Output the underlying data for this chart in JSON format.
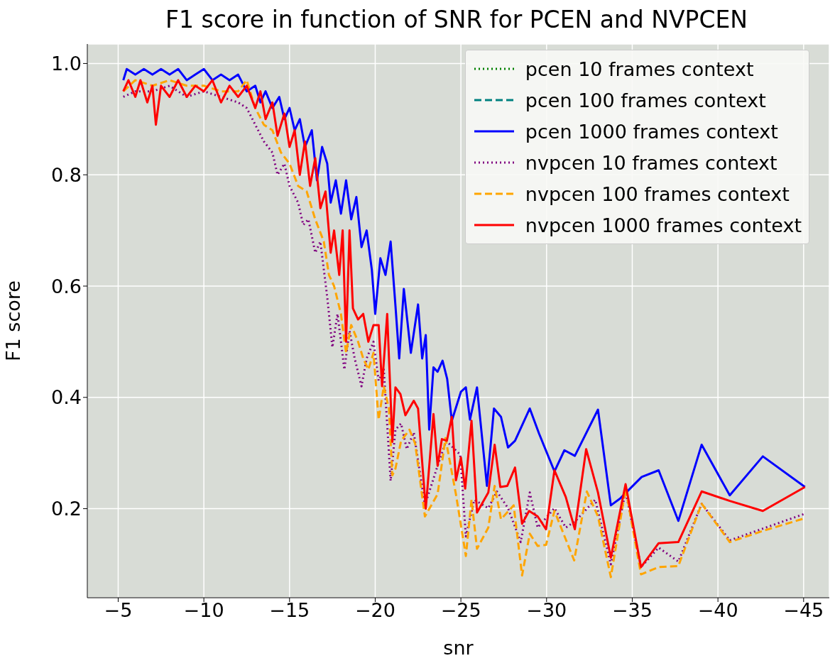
{
  "chart_data": {
    "type": "line",
    "title": "F1 score in function of SNR for PCEN and NVPCEN",
    "xlabel": "snr",
    "ylabel": "F1 score",
    "xlim": [
      -3.2,
      -46.5
    ],
    "ylim": [
      0.04,
      1.035
    ],
    "xticks": [
      {
        "value": -5,
        "label": "−5"
      },
      {
        "value": -10,
        "label": "−10"
      },
      {
        "value": -15,
        "label": "−15"
      },
      {
        "value": -20,
        "label": "−20"
      },
      {
        "value": -25,
        "label": "−25"
      },
      {
        "value": -30,
        "label": "−30"
      },
      {
        "value": -35,
        "label": "−35"
      },
      {
        "value": -40,
        "label": "−40"
      },
      {
        "value": -45,
        "label": "−45"
      }
    ],
    "yticks": [
      0.2,
      0.4,
      0.6,
      0.8,
      {
        "value": 1,
        "label": "1.0"
      }
    ],
    "grid": true,
    "legend": "top right",
    "marker": "none",
    "series": [
      {
        "name": "pcen 10 frames context",
        "color": "#008000",
        "line_style": "dotted"
      },
      {
        "name": "pcen 100 frames context",
        "color": "#008080",
        "line_style": "dashed"
      },
      {
        "name": "pcen 1000 frames context",
        "color": "#0000ff",
        "line_style": "solid",
        "x": [
          -5.3,
          -5.5,
          -6,
          -6.5,
          -7,
          -7.5,
          -8,
          -8.5,
          -9,
          -9.5,
          -10,
          -10.5,
          -11,
          -11.5,
          -12,
          -12.5,
          -13,
          -13.3,
          -13.6,
          -14,
          -14.4,
          -14.7,
          -15,
          -15.3,
          -15.6,
          -15.9,
          -16.3,
          -16.6,
          -16.9,
          -17.2,
          -17.4,
          -17.7,
          -18,
          -18.3,
          -18.6,
          -18.9,
          -19.2,
          -19.5,
          -19.8,
          -20,
          -20.3,
          -20.6,
          -20.9,
          -21.18,
          -21.4,
          -21.67,
          -22.08,
          -22.5,
          -22.74,
          -22.95,
          -23.15,
          -23.4,
          -23.64,
          -23.93,
          -24.2,
          -24.47,
          -25,
          -25.29,
          -25.53,
          -25.94,
          -26.52,
          -26.93,
          -27.34,
          -27.75,
          -28.16,
          -29.02,
          -29.56,
          -30.46,
          -31.04,
          -31.65,
          -33,
          -33.75,
          -34.32,
          -35.55,
          -36.54,
          -37.69,
          -39.05,
          -40.69,
          -42.62,
          -45.08
        ],
        "values": [
          0.97,
          0.99,
          0.98,
          0.99,
          0.98,
          0.99,
          0.98,
          0.99,
          0.97,
          0.98,
          0.99,
          0.97,
          0.98,
          0.97,
          0.98,
          0.95,
          0.96,
          0.93,
          0.95,
          0.92,
          0.94,
          0.9,
          0.92,
          0.88,
          0.9,
          0.85,
          0.88,
          0.79,
          0.85,
          0.82,
          0.75,
          0.79,
          0.73,
          0.79,
          0.72,
          0.76,
          0.67,
          0.7,
          0.63,
          0.55,
          0.65,
          0.62,
          0.68,
          0.565,
          0.47,
          0.595,
          0.48,
          0.567,
          0.47,
          0.512,
          0.342,
          0.454,
          0.446,
          0.466,
          0.433,
          0.358,
          0.41,
          0.418,
          0.36,
          0.418,
          0.241,
          0.38,
          0.365,
          0.31,
          0.322,
          0.38,
          0.335,
          0.267,
          0.305,
          0.295,
          0.378,
          0.206,
          0.219,
          0.257,
          0.269,
          0.178,
          0.315,
          0.224,
          0.294,
          0.239
        ]
      },
      {
        "name": "nvpcen 10 frames context",
        "color": "#800080",
        "line_style": "dotted",
        "x": [
          -5.3,
          -6,
          -7,
          -8,
          -9,
          -10,
          -11,
          -12,
          -12.5,
          -13,
          -13.5,
          -14,
          -14.3,
          -14.7,
          -15,
          -15.5,
          -15.8,
          -16.1,
          -16.5,
          -16.8,
          -17.2,
          -17.5,
          -17.8,
          -18.2,
          -18.5,
          -18.8,
          -19.2,
          -19.5,
          -19.9,
          -20.2,
          -20.5,
          -20.9,
          -21.18,
          -21.51,
          -21.84,
          -22.25,
          -22.9,
          -23.64,
          -24.14,
          -24.96,
          -25.29,
          -25.78,
          -26.6,
          -27.1,
          -27.75,
          -28.49,
          -29.02,
          -29.48,
          -30.46,
          -31.12,
          -31.69,
          -32.84,
          -33.75,
          -34.61,
          -35.51,
          -36.54,
          -37.69,
          -39.05,
          -40.69,
          -45.08
        ],
        "values": [
          0.94,
          0.95,
          0.95,
          0.96,
          0.94,
          0.95,
          0.94,
          0.93,
          0.92,
          0.89,
          0.86,
          0.84,
          0.8,
          0.82,
          0.78,
          0.75,
          0.71,
          0.72,
          0.66,
          0.68,
          0.58,
          0.49,
          0.55,
          0.45,
          0.52,
          0.47,
          0.42,
          0.47,
          0.5,
          0.43,
          0.45,
          0.25,
          0.342,
          0.353,
          0.307,
          0.337,
          0.206,
          0.277,
          0.322,
          0.297,
          0.15,
          0.216,
          0.201,
          0.231,
          0.201,
          0.14,
          0.229,
          0.166,
          0.201,
          0.166,
          0.178,
          0.216,
          0.1,
          0.231,
          0.095,
          0.13,
          0.105,
          0.209,
          0.143,
          0.191
        ]
      },
      {
        "name": "nvpcen 100 frames context",
        "color": "#ffa500",
        "line_style": "dashed",
        "x": [
          -5.3,
          -6,
          -7,
          -8,
          -9,
          -10,
          -11,
          -12,
          -12.5,
          -13,
          -13.5,
          -14,
          -14.5,
          -15,
          -15.5,
          -16,
          -16.5,
          -17,
          -17.3,
          -17.6,
          -18,
          -18.3,
          -18.6,
          -19,
          -19.3,
          -19.6,
          -19.9,
          -20.2,
          -20.5,
          -20.8,
          -21,
          -21.18,
          -21.51,
          -22,
          -22.33,
          -22.9,
          -23.64,
          -24.1,
          -24.71,
          -25.29,
          -25.62,
          -25.94,
          -26.6,
          -26.97,
          -27.34,
          -28.08,
          -28.57,
          -29.02,
          -29.48,
          -29.97,
          -30.46,
          -31.61,
          -32.35,
          -33,
          -33.75,
          -34.61,
          -35.51,
          -36.54,
          -37.69,
          -39.05,
          -40.69,
          -42.62,
          -45.08
        ],
        "values": [
          0.95,
          0.97,
          0.96,
          0.97,
          0.96,
          0.96,
          0.95,
          0.95,
          0.97,
          0.92,
          0.89,
          0.88,
          0.84,
          0.82,
          0.78,
          0.77,
          0.72,
          0.68,
          0.62,
          0.6,
          0.55,
          0.48,
          0.53,
          0.5,
          0.47,
          0.45,
          0.48,
          0.36,
          0.42,
          0.38,
          0.26,
          0.272,
          0.322,
          0.342,
          0.317,
          0.186,
          0.226,
          0.327,
          0.226,
          0.115,
          0.216,
          0.128,
          0.166,
          0.241,
          0.181,
          0.206,
          0.08,
          0.155,
          0.133,
          0.135,
          0.196,
          0.107,
          0.231,
          0.186,
          0.077,
          0.236,
          0.082,
          0.095,
          0.097,
          0.209,
          0.14,
          0.16,
          0.183
        ]
      },
      {
        "name": "nvpcen 1000 frames context",
        "color": "#ff0000",
        "line_style": "solid",
        "x": [
          -5.3,
          -5.6,
          -6,
          -6.3,
          -6.7,
          -7,
          -7.2,
          -7.5,
          -8,
          -8.5,
          -9,
          -9.5,
          -10,
          -10.5,
          -11,
          -11.5,
          -12,
          -12.5,
          -13,
          -13.3,
          -13.6,
          -14,
          -14.3,
          -14.7,
          -15,
          -15.3,
          -15.6,
          -15.9,
          -16.2,
          -16.5,
          -16.8,
          -17.1,
          -17.4,
          -17.6,
          -17.9,
          -18.1,
          -18.3,
          -18.5,
          -18.7,
          -19,
          -19.3,
          -19.6,
          -19.9,
          -20.2,
          -20.4,
          -20.7,
          -21,
          -21.18,
          -21.47,
          -21.76,
          -22.25,
          -22.5,
          -22.95,
          -23.4,
          -23.64,
          -23.89,
          -24.18,
          -24.47,
          -24.71,
          -25,
          -25.25,
          -25.62,
          -25.94,
          -26.6,
          -26.97,
          -27.3,
          -27.71,
          -28.16,
          -28.57,
          -28.98,
          -29.48,
          -29.97,
          -30.46,
          -31.12,
          -31.65,
          -32.31,
          -33,
          -33.75,
          -34.61,
          -35.51,
          -36.54,
          -37.69,
          -39.05,
          -40.69,
          -42.62,
          -45.08
        ],
        "values": [
          0.95,
          0.97,
          0.94,
          0.97,
          0.93,
          0.96,
          0.89,
          0.96,
          0.94,
          0.97,
          0.94,
          0.96,
          0.95,
          0.97,
          0.93,
          0.96,
          0.94,
          0.96,
          0.92,
          0.95,
          0.9,
          0.93,
          0.87,
          0.91,
          0.85,
          0.88,
          0.8,
          0.86,
          0.78,
          0.83,
          0.74,
          0.77,
          0.66,
          0.7,
          0.62,
          0.7,
          0.5,
          0.7,
          0.56,
          0.54,
          0.55,
          0.5,
          0.53,
          0.53,
          0.42,
          0.55,
          0.32,
          0.418,
          0.406,
          0.368,
          0.394,
          0.38,
          0.2,
          0.37,
          0.277,
          0.325,
          0.322,
          0.365,
          0.251,
          0.292,
          0.236,
          0.358,
          0.193,
          0.229,
          0.315,
          0.239,
          0.241,
          0.274,
          0.173,
          0.196,
          0.186,
          0.163,
          0.269,
          0.221,
          0.163,
          0.307,
          0.229,
          0.112,
          0.244,
          0.095,
          0.138,
          0.14,
          0.231,
          0.214,
          0.196,
          0.239
        ]
      }
    ]
  }
}
